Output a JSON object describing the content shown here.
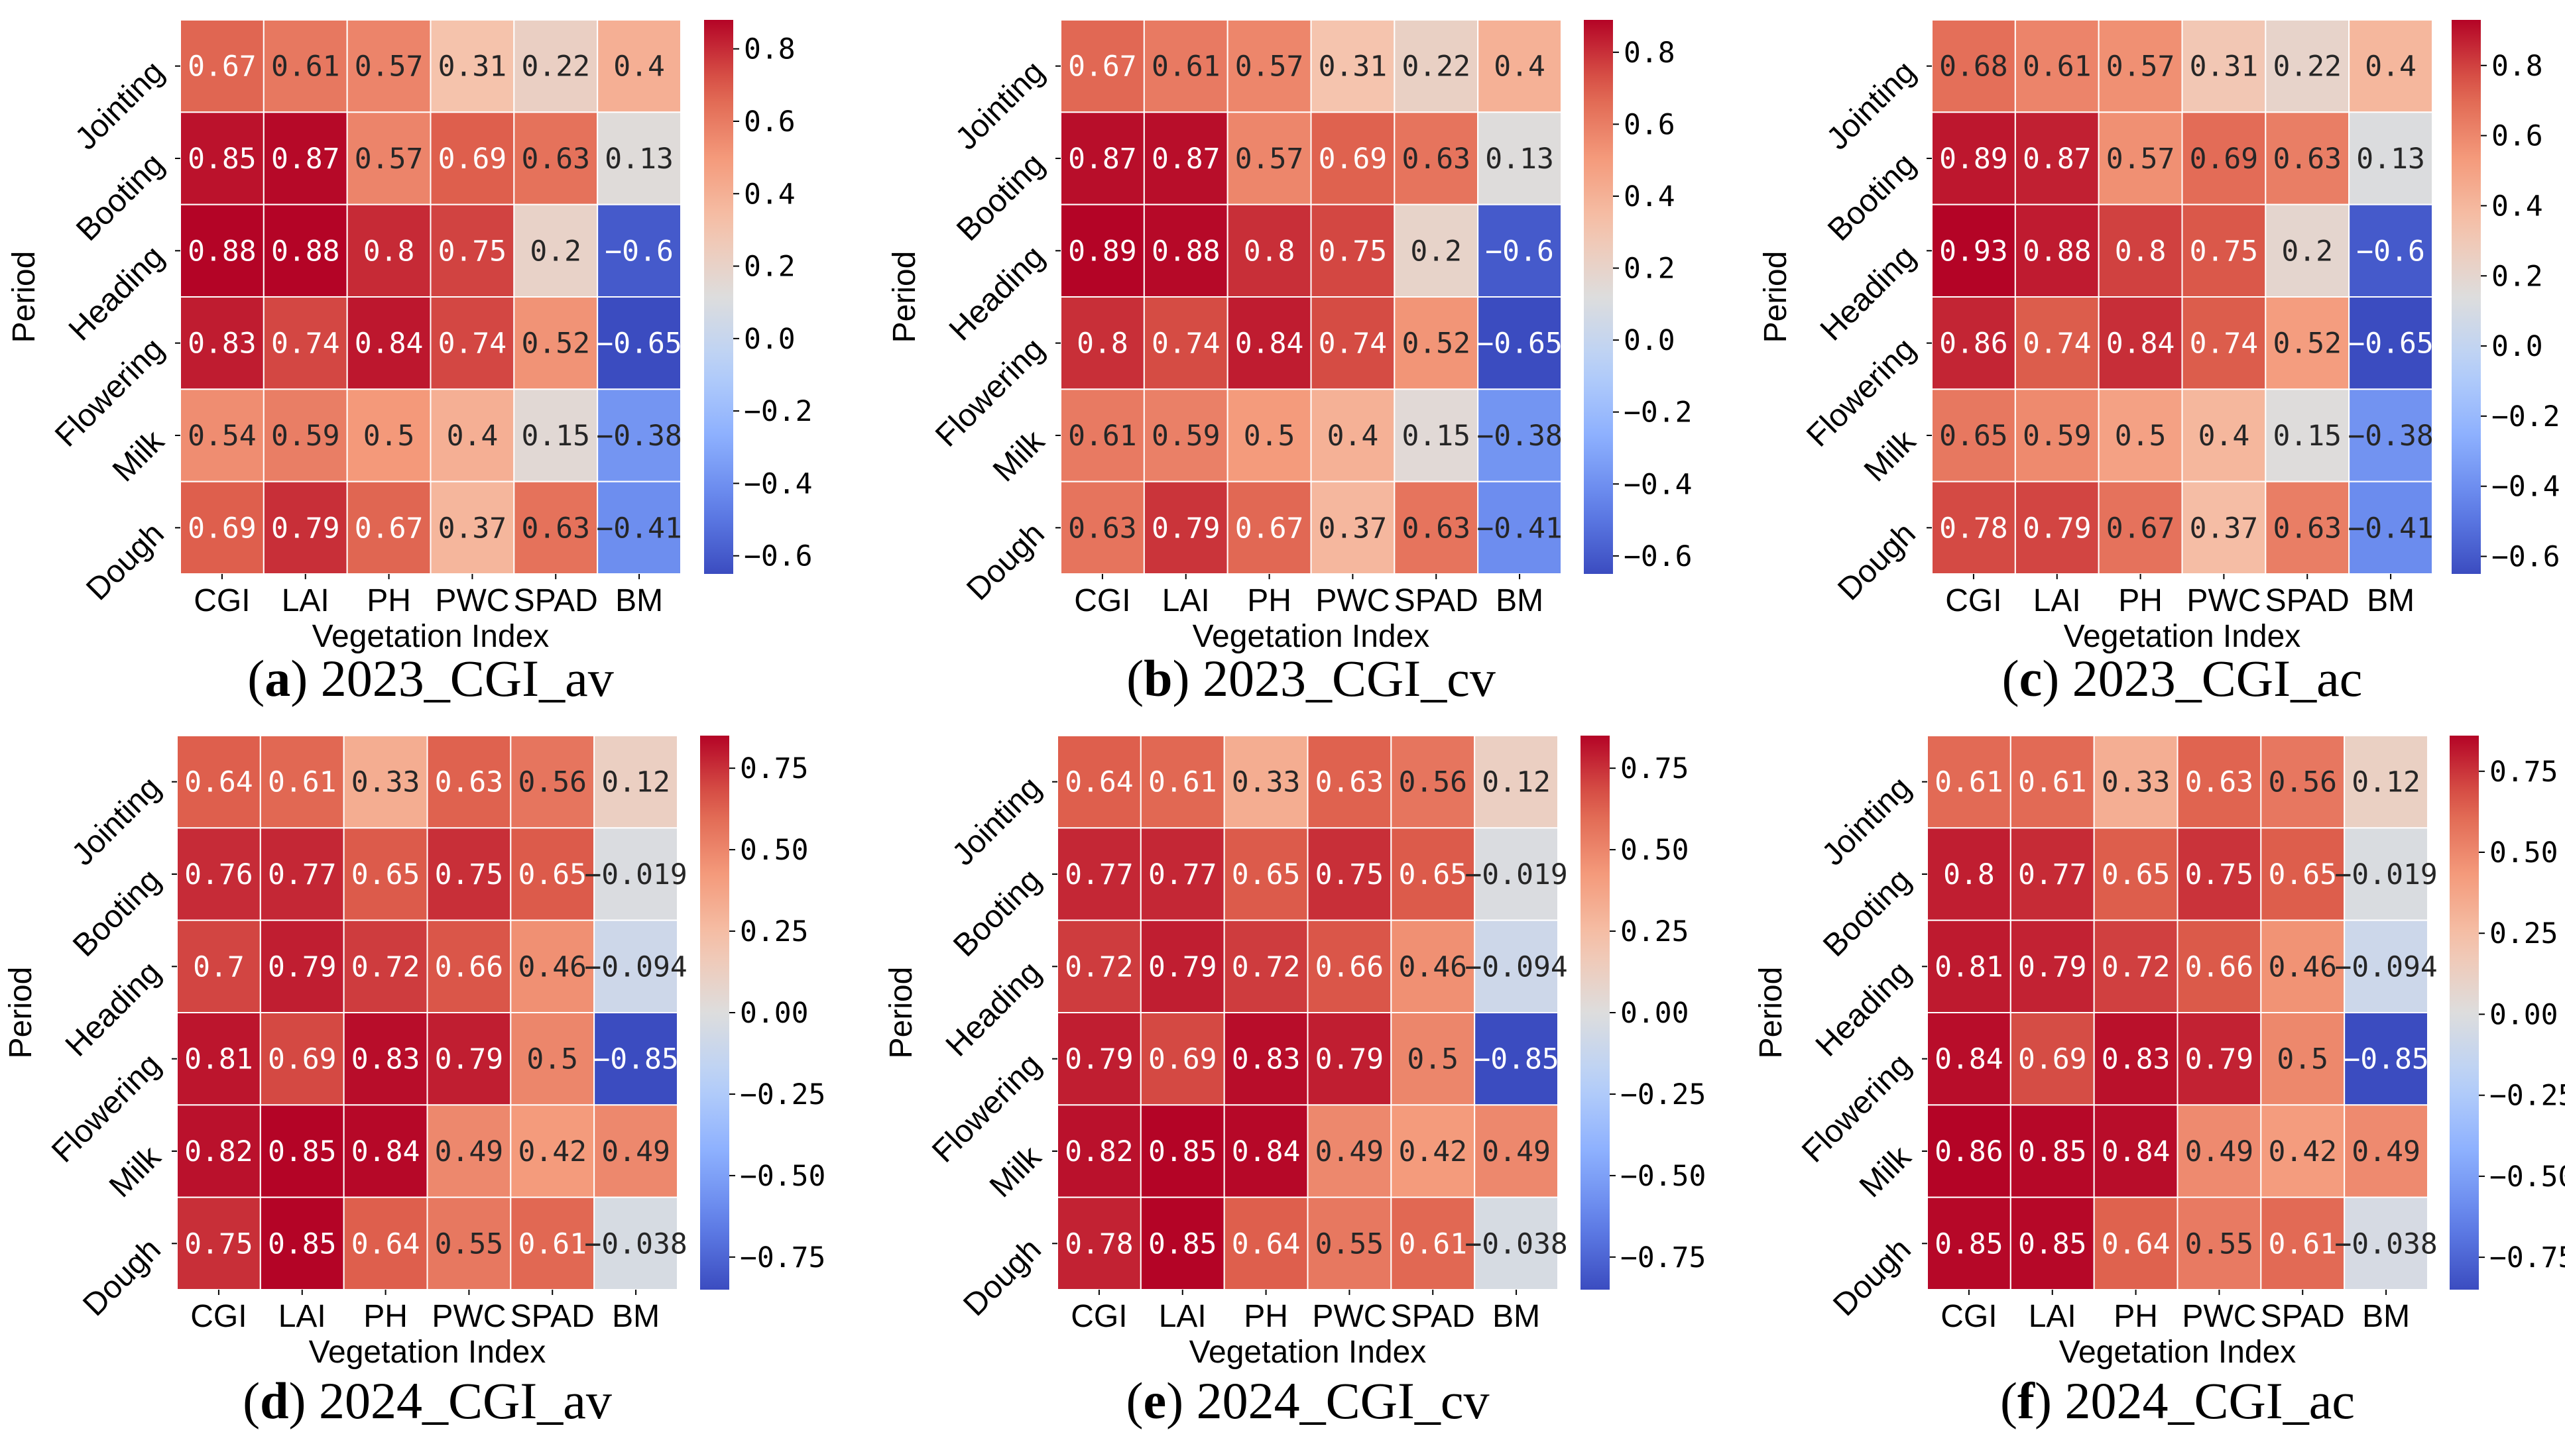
{
  "chart_data": [
    {
      "type": "heatmap",
      "title": "2023_CGI_av",
      "caption": {
        "letter": "a",
        "text": "2023_CGI_av"
      },
      "xlabel": "Vegetation Index",
      "ylabel": "Period",
      "x_tick_labels": [
        "CGI",
        "LAI",
        "PH",
        "PWC",
        "SPAD",
        "BM"
      ],
      "y_tick_labels": [
        "Jointing",
        "Booting",
        "Heading",
        "Flowering",
        "Milk",
        "Dough"
      ],
      "values": [
        [
          "0.67",
          "0.61",
          "0.57",
          "0.31",
          "0.22",
          "0.4"
        ],
        [
          "0.85",
          "0.87",
          "0.57",
          "0.69",
          "0.63",
          "0.13"
        ],
        [
          "0.88",
          "0.88",
          "0.8",
          "0.75",
          "0.2",
          "-0.6"
        ],
        [
          "0.83",
          "0.74",
          "0.84",
          "0.74",
          "0.52",
          "-0.65"
        ],
        [
          "0.54",
          "0.59",
          "0.5",
          "0.4",
          "0.15",
          "-0.38"
        ],
        [
          "0.69",
          "0.79",
          "0.67",
          "0.37",
          "0.63",
          "-0.41"
        ]
      ],
      "colorbar": {
        "range": [
          -0.65,
          0.88
        ],
        "ticks": [
          0.8,
          0.6,
          0.4,
          0.2,
          0.0,
          -0.2,
          -0.4,
          -0.6
        ],
        "tick_labels": [
          "0.8",
          "0.6",
          "0.4",
          "0.2",
          "0.0",
          "−0.2",
          "−0.4",
          "−0.6"
        ]
      }
    },
    {
      "type": "heatmap",
      "title": "2023_CGI_cv",
      "caption": {
        "letter": "b",
        "text": "2023_CGI_cv"
      },
      "xlabel": "Vegetation Index",
      "ylabel": "Period",
      "x_tick_labels": [
        "CGI",
        "LAI",
        "PH",
        "PWC",
        "SPAD",
        "BM"
      ],
      "y_tick_labels": [
        "Jointing",
        "Booting",
        "Heading",
        "Flowering",
        "Milk",
        "Dough"
      ],
      "values": [
        [
          "0.67",
          "0.61",
          "0.57",
          "0.31",
          "0.22",
          "0.4"
        ],
        [
          "0.87",
          "0.87",
          "0.57",
          "0.69",
          "0.63",
          "0.13"
        ],
        [
          "0.89",
          "0.88",
          "0.8",
          "0.75",
          "0.2",
          "-0.6"
        ],
        [
          "0.8",
          "0.74",
          "0.84",
          "0.74",
          "0.52",
          "-0.65"
        ],
        [
          "0.61",
          "0.59",
          "0.5",
          "0.4",
          "0.15",
          "-0.38"
        ],
        [
          "0.63",
          "0.79",
          "0.67",
          "0.37",
          "0.63",
          "-0.41"
        ]
      ],
      "colorbar": {
        "range": [
          -0.65,
          0.89
        ],
        "ticks": [
          0.8,
          0.6,
          0.4,
          0.2,
          0.0,
          -0.2,
          -0.4,
          -0.6
        ],
        "tick_labels": [
          "0.8",
          "0.6",
          "0.4",
          "0.2",
          "0.0",
          "−0.2",
          "−0.4",
          "−0.6"
        ]
      }
    },
    {
      "type": "heatmap",
      "title": "2023_CGI_ac",
      "caption": {
        "letter": "c",
        "text": "2023_CGI_ac"
      },
      "xlabel": "Vegetation Index",
      "ylabel": "Period",
      "x_tick_labels": [
        "CGI",
        "LAI",
        "PH",
        "PWC",
        "SPAD",
        "BM"
      ],
      "y_tick_labels": [
        "Jointing",
        "Booting",
        "Heading",
        "Flowering",
        "Milk",
        "Dough"
      ],
      "values": [
        [
          "0.68",
          "0.61",
          "0.57",
          "0.31",
          "0.22",
          "0.4"
        ],
        [
          "0.89",
          "0.87",
          "0.57",
          "0.69",
          "0.63",
          "0.13"
        ],
        [
          "0.93",
          "0.88",
          "0.8",
          "0.75",
          "0.2",
          "-0.6"
        ],
        [
          "0.86",
          "0.74",
          "0.84",
          "0.74",
          "0.52",
          "-0.65"
        ],
        [
          "0.65",
          "0.59",
          "0.5",
          "0.4",
          "0.15",
          "-0.38"
        ],
        [
          "0.78",
          "0.79",
          "0.67",
          "0.37",
          "0.63",
          "-0.41"
        ]
      ],
      "colorbar": {
        "range": [
          -0.65,
          0.93
        ],
        "ticks": [
          0.8,
          0.6,
          0.4,
          0.2,
          0.0,
          -0.2,
          -0.4,
          -0.6
        ],
        "tick_labels": [
          "0.8",
          "0.6",
          "0.4",
          "0.2",
          "0.0",
          "−0.2",
          "−0.4",
          "−0.6"
        ]
      }
    },
    {
      "type": "heatmap",
      "title": "2024_CGI_av",
      "caption": {
        "letter": "d",
        "text": "2024_CGI_av"
      },
      "xlabel": "Vegetation Index",
      "ylabel": "Period",
      "x_tick_labels": [
        "CGI",
        "LAI",
        "PH",
        "PWC",
        "SPAD",
        "BM"
      ],
      "y_tick_labels": [
        "Jointing",
        "Booting",
        "Heading",
        "Flowering",
        "Milk",
        "Dough"
      ],
      "values": [
        [
          "0.64",
          "0.61",
          "0.33",
          "0.63",
          "0.56",
          "0.12"
        ],
        [
          "0.76",
          "0.77",
          "0.65",
          "0.75",
          "0.65",
          "-0.019"
        ],
        [
          "0.7",
          "0.79",
          "0.72",
          "0.66",
          "0.46",
          "-0.094"
        ],
        [
          "0.81",
          "0.69",
          "0.83",
          "0.79",
          "0.5",
          "-0.85"
        ],
        [
          "0.82",
          "0.85",
          "0.84",
          "0.49",
          "0.42",
          "0.49"
        ],
        [
          "0.75",
          "0.85",
          "0.64",
          "0.55",
          "0.61",
          "-0.038"
        ]
      ],
      "colorbar": {
        "range": [
          -0.85,
          0.85
        ],
        "ticks": [
          0.75,
          0.5,
          0.25,
          0.0,
          -0.25,
          -0.5,
          -0.75
        ],
        "tick_labels": [
          "0.75",
          "0.50",
          "0.25",
          "0.00",
          "−0.25",
          "−0.50",
          "−0.75"
        ]
      }
    },
    {
      "type": "heatmap",
      "title": "2024_CGI_cv",
      "caption": {
        "letter": "e",
        "text": "2024_CGI_cv"
      },
      "xlabel": "Vegetation Index",
      "ylabel": "Period",
      "x_tick_labels": [
        "CGI",
        "LAI",
        "PH",
        "PWC",
        "SPAD",
        "BM"
      ],
      "y_tick_labels": [
        "Jointing",
        "Booting",
        "Heading",
        "Flowering",
        "Milk",
        "Dough"
      ],
      "values": [
        [
          "0.64",
          "0.61",
          "0.33",
          "0.63",
          "0.56",
          "0.12"
        ],
        [
          "0.77",
          "0.77",
          "0.65",
          "0.75",
          "0.65",
          "-0.019"
        ],
        [
          "0.72",
          "0.79",
          "0.72",
          "0.66",
          "0.46",
          "-0.094"
        ],
        [
          "0.79",
          "0.69",
          "0.83",
          "0.79",
          "0.5",
          "-0.85"
        ],
        [
          "0.82",
          "0.85",
          "0.84",
          "0.49",
          "0.42",
          "0.49"
        ],
        [
          "0.78",
          "0.85",
          "0.64",
          "0.55",
          "0.61",
          "-0.038"
        ]
      ],
      "colorbar": {
        "range": [
          -0.85,
          0.85
        ],
        "ticks": [
          0.75,
          0.5,
          0.25,
          0.0,
          -0.25,
          -0.5,
          -0.75
        ],
        "tick_labels": [
          "0.75",
          "0.50",
          "0.25",
          "0.00",
          "−0.25",
          "−0.50",
          "−0.75"
        ]
      }
    },
    {
      "type": "heatmap",
      "title": "2024_CGI_ac",
      "caption": {
        "letter": "f",
        "text": "2024_CGI_ac"
      },
      "xlabel": "Vegetation Index",
      "ylabel": "Period",
      "x_tick_labels": [
        "CGI",
        "LAI",
        "PH",
        "PWC",
        "SPAD",
        "BM"
      ],
      "y_tick_labels": [
        "Jointing",
        "Booting",
        "Heading",
        "Flowering",
        "Milk",
        "Dough"
      ],
      "values": [
        [
          "0.61",
          "0.61",
          "0.33",
          "0.63",
          "0.56",
          "0.12"
        ],
        [
          "0.8",
          "0.77",
          "0.65",
          "0.75",
          "0.65",
          "-0.019"
        ],
        [
          "0.81",
          "0.79",
          "0.72",
          "0.66",
          "0.46",
          "-0.094"
        ],
        [
          "0.84",
          "0.69",
          "0.83",
          "0.79",
          "0.5",
          "-0.85"
        ],
        [
          "0.86",
          "0.85",
          "0.84",
          "0.49",
          "0.42",
          "0.49"
        ],
        [
          "0.85",
          "0.85",
          "0.64",
          "0.55",
          "0.61",
          "-0.038"
        ]
      ],
      "colorbar": {
        "range": [
          -0.85,
          0.86
        ],
        "ticks": [
          0.75,
          0.5,
          0.25,
          0.0,
          -0.25,
          -0.5,
          -0.75
        ],
        "tick_labels": [
          "0.75",
          "0.50",
          "0.25",
          "0.00",
          "−0.25",
          "−0.50",
          "−0.75"
        ]
      }
    }
  ]
}
